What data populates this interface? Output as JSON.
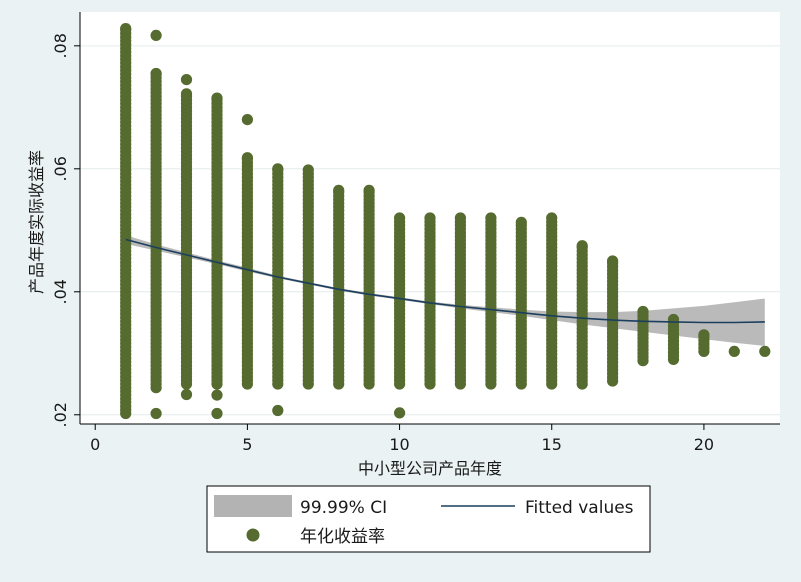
{
  "chart_data": {
    "type": "scatter",
    "xlabel": "中小型公司产品年度",
    "ylabel": "产品年度实际收益率",
    "xlim": [
      -0.5,
      22.5
    ],
    "ylim": [
      0.0185,
      0.0855
    ],
    "xticks": [
      0,
      5,
      10,
      15,
      20
    ],
    "xtick_labels": [
      "0",
      "5",
      "10",
      "15",
      "20"
    ],
    "yticks": [
      0.02,
      0.04,
      0.06,
      0.08
    ],
    "ytick_labels": [
      ".02",
      ".04",
      ".06",
      ".08"
    ],
    "grid": "horizontal",
    "legend_position": "bottom",
    "legend": {
      "ci_label": "99.99% CI",
      "fit_label": "Fitted values",
      "scatter_label": "年化收益率"
    },
    "colors": {
      "points": "#556b2f",
      "fit_line": "#1c3f5f",
      "ci_band": "#b3b3b3",
      "plot_background": "#ffffff",
      "outer_background": "#eaf2f3",
      "gridline": "#e4ecee"
    },
    "series": [
      {
        "name": "年化收益率",
        "kind": "scatter",
        "columns": [
          {
            "x": 1,
            "min": 0.0202,
            "max": 0.0828,
            "outliers": []
          },
          {
            "x": 2,
            "min": 0.0244,
            "max": 0.0755,
            "outliers": [
              0.0202,
              0.0817
            ]
          },
          {
            "x": 3,
            "min": 0.025,
            "max": 0.0722,
            "outliers": [
              0.0233,
              0.0745
            ]
          },
          {
            "x": 4,
            "min": 0.025,
            "max": 0.0715,
            "outliers": [
              0.0202,
              0.0232
            ]
          },
          {
            "x": 5,
            "min": 0.025,
            "max": 0.0618,
            "outliers": [
              0.068
            ]
          },
          {
            "x": 6,
            "min": 0.025,
            "max": 0.06,
            "outliers": [
              0.0207
            ]
          },
          {
            "x": 7,
            "min": 0.025,
            "max": 0.0598,
            "outliers": []
          },
          {
            "x": 8,
            "min": 0.025,
            "max": 0.0565,
            "outliers": []
          },
          {
            "x": 9,
            "min": 0.025,
            "max": 0.0565,
            "outliers": []
          },
          {
            "x": 10,
            "min": 0.025,
            "max": 0.052,
            "outliers": [
              0.0203
            ]
          },
          {
            "x": 11,
            "min": 0.025,
            "max": 0.052,
            "outliers": []
          },
          {
            "x": 12,
            "min": 0.025,
            "max": 0.052,
            "outliers": []
          },
          {
            "x": 13,
            "min": 0.025,
            "max": 0.052,
            "outliers": []
          },
          {
            "x": 14,
            "min": 0.025,
            "max": 0.0513,
            "outliers": []
          },
          {
            "x": 15,
            "min": 0.025,
            "max": 0.052,
            "outliers": []
          },
          {
            "x": 16,
            "min": 0.025,
            "max": 0.0475,
            "outliers": []
          },
          {
            "x": 17,
            "min": 0.0255,
            "max": 0.045,
            "outliers": []
          },
          {
            "x": 18,
            "min": 0.0288,
            "max": 0.0368,
            "outliers": []
          },
          {
            "x": 19,
            "min": 0.029,
            "max": 0.0355,
            "outliers": []
          },
          {
            "x": 20,
            "min": 0.0303,
            "max": 0.033,
            "outliers": []
          },
          {
            "x": 21,
            "min": 0.0303,
            "max": 0.0303,
            "outliers": []
          },
          {
            "x": 22,
            "min": 0.0303,
            "max": 0.0303,
            "outliers": []
          }
        ]
      },
      {
        "name": "Fitted values",
        "kind": "line",
        "x": [
          1,
          2,
          3,
          4,
          5,
          6,
          7,
          8,
          9,
          10,
          11,
          12,
          13,
          14,
          15,
          16,
          17,
          18,
          19,
          20,
          21,
          22
        ],
        "y": [
          0.0485,
          0.0472,
          0.046,
          0.0448,
          0.0436,
          0.0424,
          0.0414,
          0.0404,
          0.0396,
          0.0389,
          0.0382,
          0.0376,
          0.0371,
          0.0366,
          0.0361,
          0.0357,
          0.0354,
          0.0352,
          0.0351,
          0.035,
          0.035,
          0.0351
        ]
      },
      {
        "name": "99.99% CI",
        "kind": "band",
        "x": [
          1,
          2,
          3,
          4,
          5,
          6,
          7,
          8,
          9,
          10,
          11,
          12,
          13,
          14,
          15,
          16,
          17,
          18,
          19,
          20,
          21,
          22
        ],
        "lower": [
          0.0478,
          0.0467,
          0.0456,
          0.0445,
          0.0433,
          0.0422,
          0.0412,
          0.0402,
          0.0394,
          0.0387,
          0.038,
          0.0373,
          0.0367,
          0.0361,
          0.0354,
          0.0347,
          0.0341,
          0.0335,
          0.0329,
          0.0323,
          0.0317,
          0.0312
        ],
        "upper": [
          0.0492,
          0.0477,
          0.0464,
          0.0451,
          0.0439,
          0.0426,
          0.0416,
          0.0406,
          0.0398,
          0.0391,
          0.0384,
          0.0379,
          0.0375,
          0.0371,
          0.0368,
          0.0367,
          0.0367,
          0.0369,
          0.0373,
          0.0377,
          0.0383,
          0.0389
        ]
      }
    ]
  }
}
